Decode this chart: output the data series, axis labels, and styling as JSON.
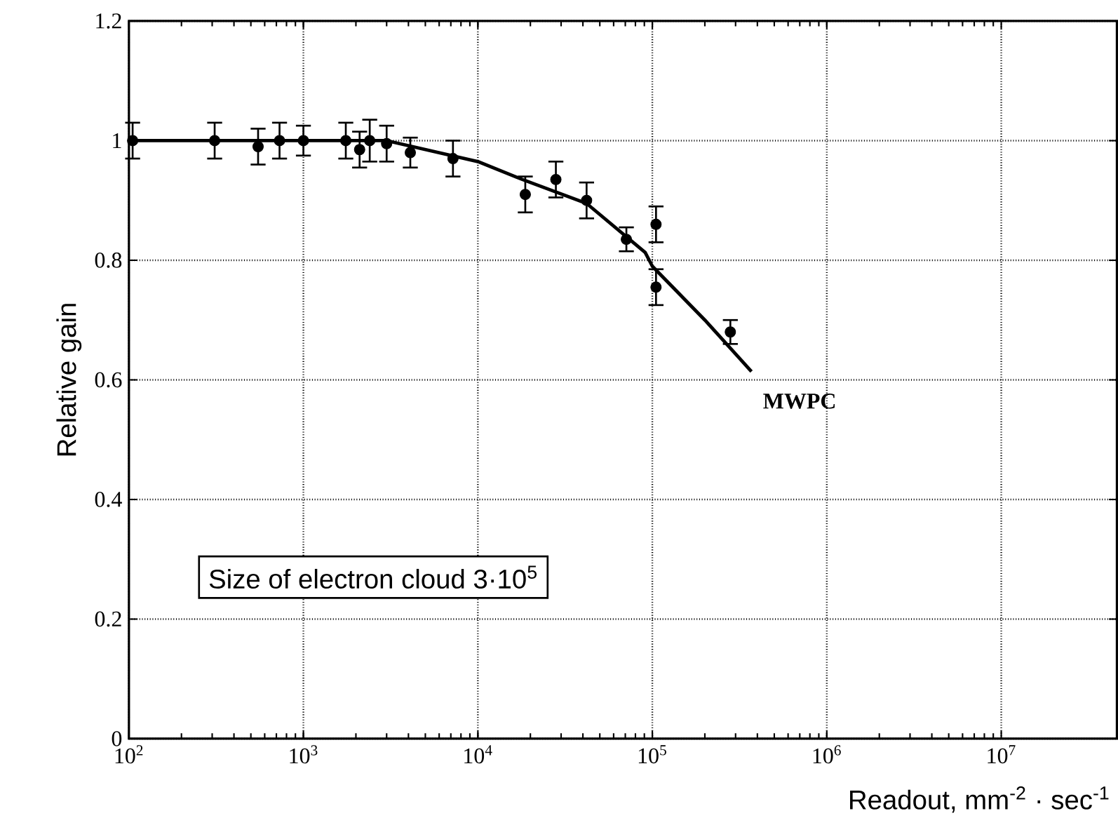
{
  "chart_data": {
    "type": "scatter",
    "xlabel": "Readout, mm$^{-2}$ · sec$^{-1}$",
    "ylabel": "Relative gain",
    "log": "x",
    "grid": true,
    "xlim": [
      100,
      46000000
    ],
    "ylim": [
      0,
      1.2
    ],
    "xticks": [
      {
        "value": 100,
        "label": "10$^{2}$"
      },
      {
        "value": 1000,
        "label": "10$^{3}$"
      },
      {
        "value": 10000,
        "label": "10$^{4}$"
      },
      {
        "value": 100000,
        "label": "10$^{5}$"
      },
      {
        "value": 1000000,
        "label": "10$^{6}$"
      },
      {
        "value": 10000000,
        "label": "10$^{7}$"
      }
    ],
    "yticks": [
      0,
      0.2,
      0.4,
      0.6,
      0.8,
      1,
      1.2
    ],
    "series": [
      {
        "color": "#000000",
        "marker": "circle",
        "x": [
          105,
          310,
          550,
          730,
          1000,
          1750,
          2100,
          2400,
          3000,
          4100,
          7200,
          18700,
          28000,
          42000,
          71000,
          105000,
          105000,
          280000
        ],
        "values": [
          1.0,
          1.0,
          0.99,
          1.0,
          1.0,
          1.0,
          0.985,
          1.0,
          0.995,
          0.98,
          0.97,
          0.91,
          0.935,
          0.9,
          0.835,
          0.86,
          0.755,
          0.68
        ],
        "errors": [
          0.03,
          0.03,
          0.03,
          0.03,
          0.025,
          0.03,
          0.03,
          0.035,
          0.03,
          0.025,
          0.03,
          0.03,
          0.03,
          0.03,
          0.02,
          0.03,
          0.03,
          0.02
        ]
      },
      {
        "type": "line",
        "color": "#000000",
        "marker": "none",
        "x": [
          100,
          3000,
          10000,
          18000,
          42000,
          91000,
          100000,
          200000,
          370000
        ],
        "values": [
          1.0,
          1.0,
          0.965,
          0.935,
          0.895,
          0.813,
          0.79,
          0.7,
          0.614
        ]
      }
    ],
    "annotations": [
      "MWPC",
      "Size of electron cloud 3·10$^{5}$"
    ]
  }
}
